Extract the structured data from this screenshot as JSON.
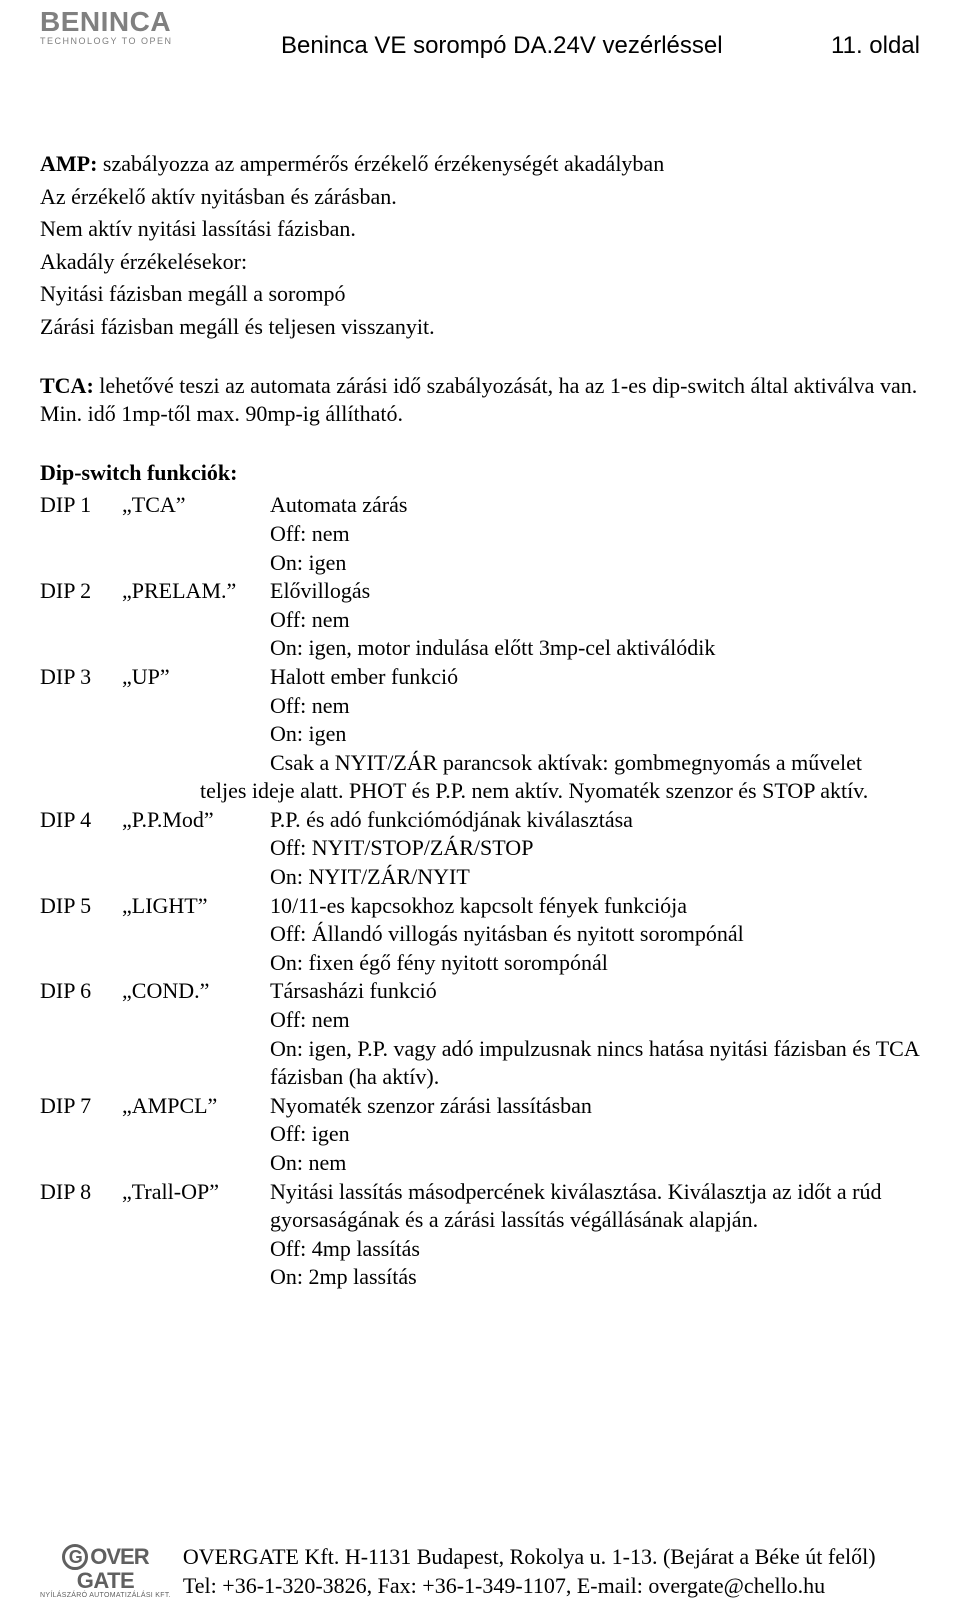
{
  "header": {
    "logo_main": "BENINCA",
    "logo_sub": "TECHNOLOGY TO OPEN",
    "center": "Beninca VE sorompó DA.24V vezérléssel",
    "right": "11. oldal"
  },
  "body": {
    "amp_label": "AMP:",
    "amp_text": " szabályozza az ampermérős érzékelő érzékenységét akadályban",
    "amp_l2": "Az érzékelő aktív nyitásban és zárásban.",
    "amp_l3": "Nem aktív nyitási lassítási fázisban.",
    "amp_l4": "Akadály érzékelésekor:",
    "amp_l5": "Nyitási fázisban megáll a sorompó",
    "amp_l6": "Zárási fázisban megáll és teljesen visszanyit.",
    "tca_label": "TCA:",
    "tca_text": " lehetővé teszi az automata zárási idő szabályozását, ha az 1-es dip-switch által aktiválva van. Min. idő 1mp-től max. 90mp-ig állítható.",
    "dip_title": "Dip-switch funkciók:",
    "dips": [
      {
        "c1": "DIP 1",
        "c2": "„TCA”",
        "lines": [
          "Automata zárás",
          "Off: nem",
          "On: igen"
        ]
      },
      {
        "c1": "DIP 2",
        "c2": "„PRELAM.”",
        "lines": [
          "Elővillogás",
          "Off: nem",
          "On: igen, motor indulása előtt 3mp-cel aktiválódik"
        ]
      },
      {
        "c1": "DIP 3",
        "c2": "„UP”",
        "lines": [
          "Halott ember funkció",
          "Off: nem",
          "On: igen",
          "Csak a NYIT/ZÁR parancsok aktívak: gombmegnyomás a művelet"
        ],
        "tail": "teljes ideje alatt. PHOT és P.P. nem aktív. Nyomaték szenzor és STOP aktív."
      },
      {
        "c1": "DIP 4",
        "c2": "„P.P.Mod”",
        "lines": [
          "P.P. és adó funkciómódjának kiválasztása",
          "Off: NYIT/STOP/ZÁR/STOP",
          "On: NYIT/ZÁR/NYIT"
        ]
      },
      {
        "c1": "DIP 5",
        "c2": "„LIGHT”",
        "lines": [
          "10/11-es kapcsokhoz kapcsolt fények funkciója",
          "Off: Állandó villogás nyitásban és nyitott sorompónál",
          "On: fixen égő fény nyitott sorompónál"
        ]
      },
      {
        "c1": "DIP 6",
        "c2": "„COND.”",
        "lines": [
          "Társasházi funkció",
          "Off: nem",
          "On: igen, P.P. vagy adó impulzusnak nincs hatása nyitási fázisban és TCA fázisban (ha aktív)."
        ]
      },
      {
        "c1": "DIP 7",
        "c2": "„AMPCL”",
        "lines": [
          "Nyomaték szenzor zárási lassításban",
          "Off: igen",
          "On: nem"
        ]
      },
      {
        "c1": "DIP 8",
        "c2": "„Trall-OP”",
        "lines": [
          "Nyitási lassítás másodpercének kiválasztása. Kiválasztja az időt a rúd gyorsaságának és a zárási  lassítás végállásának alapján.",
          "Off: 4mp lassítás",
          "On: 2mp lassítás"
        ]
      }
    ]
  },
  "footer": {
    "logo_top": "OVER",
    "logo_bot": "GATE",
    "logo_tag": "NYÍLÁSZÁRÓ AUTOMATIZÁLÁSI KFT.",
    "line1": "OVERGATE Kft. H-1131 Budapest, Rokolya u. 1-13. (Bejárat a Béke út felől)",
    "line2": "Tel: +36-1-320-3826, Fax: +36-1-349-1107, E-mail: overgate@chello.hu"
  },
  "style": {
    "page_bg": "#ffffff",
    "text_color": "#000000",
    "logo_color": "#808080",
    "body_font_size": 22,
    "header_font_size": 24
  }
}
